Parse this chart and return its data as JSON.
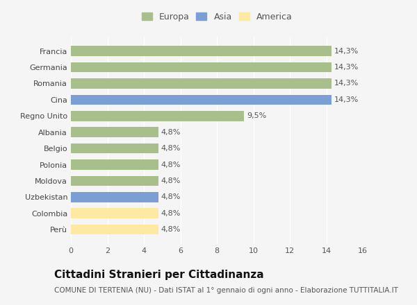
{
  "categories": [
    "Perù",
    "Colombia",
    "Uzbekistan",
    "Moldova",
    "Polonia",
    "Belgio",
    "Albania",
    "Regno Unito",
    "Cina",
    "Romania",
    "Germania",
    "Francia"
  ],
  "values": [
    4.8,
    4.8,
    4.8,
    4.8,
    4.8,
    4.8,
    4.8,
    9.5,
    14.3,
    14.3,
    14.3,
    14.3
  ],
  "labels": [
    "4,8%",
    "4,8%",
    "4,8%",
    "4,8%",
    "4,8%",
    "4,8%",
    "4,8%",
    "9,5%",
    "14,3%",
    "14,3%",
    "14,3%",
    "14,3%"
  ],
  "colors": [
    "#fde9a2",
    "#fde9a2",
    "#7b9fd4",
    "#a8bf8c",
    "#a8bf8c",
    "#a8bf8c",
    "#a8bf8c",
    "#a8bf8c",
    "#7b9fd4",
    "#a8bf8c",
    "#a8bf8c",
    "#a8bf8c"
  ],
  "legend": [
    {
      "label": "Europa",
      "color": "#a8bf8c"
    },
    {
      "label": "Asia",
      "color": "#7b9fd4"
    },
    {
      "label": "America",
      "color": "#fde9a2"
    }
  ],
  "xlim": [
    0,
    16
  ],
  "xticks": [
    0,
    2,
    4,
    6,
    8,
    10,
    12,
    14,
    16
  ],
  "title": "Cittadini Stranieri per Cittadinanza",
  "subtitle": "COMUNE DI TERTENIA (NU) - Dati ISTAT al 1° gennaio di ogni anno - Elaborazione TUTTITALIA.IT",
  "bg_color": "#f5f5f5",
  "grid_color": "#ffffff",
  "bar_height": 0.62,
  "title_fontsize": 11,
  "subtitle_fontsize": 7.5,
  "label_fontsize": 8,
  "tick_fontsize": 8,
  "legend_fontsize": 9
}
